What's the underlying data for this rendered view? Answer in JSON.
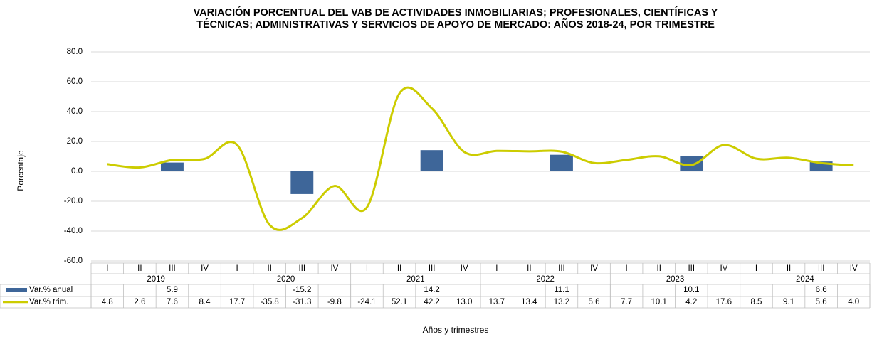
{
  "chart_data": {
    "type": "combo",
    "title": "VARIACIÓN PORCENTUAL DEL VAB DE ACTIVIDADES INMOBILIARIAS; PROFESIONALES, CIENTÍFICAS Y",
    "subtitle": "TÉCNICAS; ADMINISTRATIVAS Y SERVICIOS DE APOYO DE MERCADO: AÑOS 2018-24, POR TRIMESTRE",
    "y_label": "Porcentaje",
    "x_label": "Años y trimestres",
    "categories": [
      "I",
      "II",
      "III",
      "IV",
      "I",
      "II",
      "III",
      "IV",
      "I",
      "II",
      "III",
      "IV",
      "I",
      "II",
      "III",
      "IV",
      "I",
      "II",
      "III",
      "IV",
      "I",
      "II",
      "III",
      "IV"
    ],
    "years": [
      "2019",
      "2020",
      "2021",
      "2022",
      "2023",
      "2024"
    ],
    "ylim": [
      -60,
      80
    ],
    "yticks": [
      {
        "value": -60,
        "label": "-60.0"
      },
      {
        "value": -40,
        "label": "-40.0"
      },
      {
        "value": -20,
        "label": "-20.0"
      },
      {
        "value": 0,
        "label": "0.0"
      },
      {
        "value": 20,
        "label": "20.0"
      },
      {
        "value": 40,
        "label": "40.0"
      },
      {
        "value": 60,
        "label": "60.0"
      },
      {
        "value": 80,
        "label": "80.0"
      }
    ],
    "grid": true,
    "series": [
      {
        "name": "Var.% anual",
        "type": "bar",
        "color": "#3e6699",
        "values": [
          null,
          null,
          5.9,
          null,
          null,
          null,
          -15.2,
          null,
          null,
          null,
          14.2,
          null,
          null,
          null,
          11.1,
          null,
          null,
          null,
          10.1,
          null,
          null,
          null,
          6.6,
          null
        ]
      },
      {
        "name": "Var.% trim.",
        "type": "line",
        "color": "#cccc00",
        "values": [
          4.8,
          2.6,
          7.6,
          8.4,
          17.7,
          -35.8,
          -31.3,
          -9.8,
          -24.1,
          52.1,
          42.2,
          13.0,
          13.7,
          13.4,
          13.2,
          5.6,
          7.7,
          10.1,
          4.2,
          17.6,
          8.5,
          9.1,
          5.6,
          4.0
        ],
        "value_labels": [
          "4.8",
          "2.6",
          "7.6",
          "8.4",
          "17.7",
          "-35.8",
          "-31.3",
          "-9.8",
          "-24.1",
          "52.1",
          "42.2",
          "13.0",
          "13.7",
          "13.4",
          "13.2",
          "5.6",
          "7.7",
          "10.1",
          "4.2",
          "17.6",
          "8.5",
          "9.1",
          "5.6",
          "4.0"
        ]
      }
    ]
  }
}
